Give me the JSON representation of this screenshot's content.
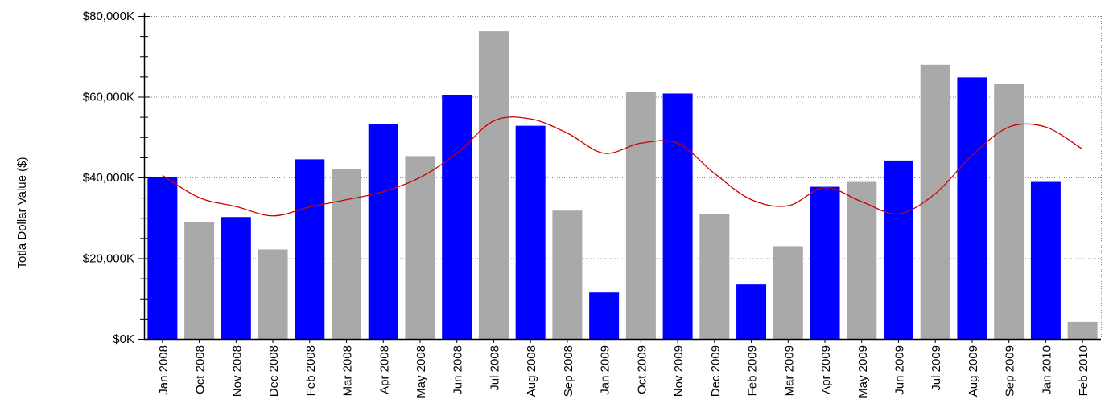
{
  "chart_data": {
    "type": "bar",
    "title": "",
    "xlabel": "",
    "ylabel": "Totla Dollar Value ($)",
    "ylim": [
      0,
      80000
    ],
    "yticks": [
      0,
      20000,
      40000,
      60000,
      80000
    ],
    "ytick_labels": [
      "$0K",
      "$20,000K",
      "$40,000K",
      "$60,000K",
      "$80,000K"
    ],
    "grid": true,
    "categories": [
      "Jan 2008",
      "Oct 2008",
      "Nov 2008",
      "Dec 2008",
      "Feb 2008",
      "Mar 2008",
      "Apr 2008",
      "May 2008",
      "Jun 2008",
      "Jul 2008",
      "Aug 2008",
      "Sep 2008",
      "Jan 2009",
      "Oct 2009",
      "Nov 2009",
      "Dec 2009",
      "Feb 2009",
      "Mar 2009",
      "Apr 2009",
      "May 2009",
      "Jun 2009",
      "Jul 2009",
      "Aug 2009",
      "Sep 2009",
      "Jan 2010",
      "Feb 2010"
    ],
    "values": [
      40000,
      29000,
      30200,
      22200,
      44500,
      42000,
      53200,
      45300,
      60500,
      76200,
      52800,
      31800,
      11500,
      61200,
      60800,
      31000,
      13500,
      23000,
      37700,
      38900,
      44200,
      67900,
      64800,
      63100,
      38900,
      4200
    ],
    "bar_colors": [
      "#0000ff",
      "#a9a9a9",
      "#0000ff",
      "#a9a9a9",
      "#0000ff",
      "#a9a9a9",
      "#0000ff",
      "#a9a9a9",
      "#0000ff",
      "#a9a9a9",
      "#0000ff",
      "#a9a9a9",
      "#0000ff",
      "#a9a9a9",
      "#0000ff",
      "#a9a9a9",
      "#0000ff",
      "#a9a9a9",
      "#0000ff",
      "#a9a9a9",
      "#0000ff",
      "#a9a9a9",
      "#0000ff",
      "#a9a9a9",
      "#0000ff",
      "#a9a9a9"
    ],
    "trend_line": {
      "color": "#cc0000",
      "values": [
        40500,
        35000,
        32800,
        30500,
        32700,
        34500,
        36500,
        40000,
        46000,
        54000,
        54500,
        51000,
        46000,
        48500,
        48500,
        41000,
        34500,
        33000,
        37500,
        34000,
        31000,
        36000,
        45500,
        52500,
        52500,
        47000
      ]
    },
    "colors": {
      "blue": "#0000ff",
      "gray": "#a9a9a9",
      "trend": "#cc0000",
      "grid": "#8a8a8a",
      "axis": "#000000"
    }
  }
}
